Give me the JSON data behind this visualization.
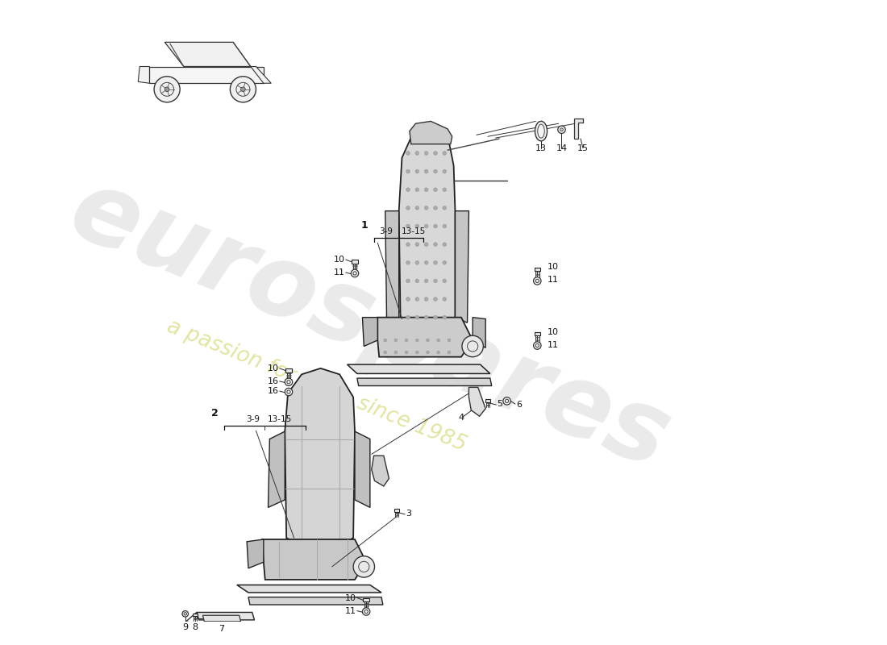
{
  "background_color": "#ffffff",
  "watermark_text1": "eurospares",
  "watermark_text2": "a passion for parts since 1985",
  "seat1_color": "#d0d0d0",
  "seat2_color": "#d5d5d5",
  "line_color": "#222222",
  "label_color": "#111111"
}
